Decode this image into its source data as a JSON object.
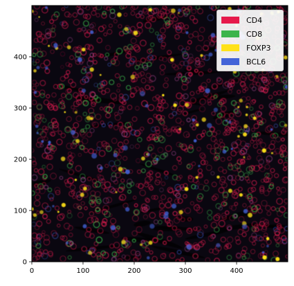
{
  "image": {
    "description_colors": {
      "background": "#0a0710",
      "membrane": "#e21d4f",
      "cd8": "#3cb44b",
      "foxp3": "#ffe119",
      "bcl6": "#4363d8"
    }
  },
  "axes": {
    "xlim": [
      0,
      500
    ],
    "ylim": [
      0,
      500
    ],
    "x_ticks": [
      "0",
      "100",
      "200",
      "300",
      "400"
    ],
    "y_ticks": [
      "0",
      "100",
      "200",
      "300",
      "400"
    ]
  },
  "legend": {
    "placement": "top-right",
    "entries": [
      {
        "label": "CD4",
        "color": "#e6194b"
      },
      {
        "label": "CD8",
        "color": "#3cb44b"
      },
      {
        "label": "FOXP3",
        "color": "#ffe119"
      },
      {
        "label": "BCL6",
        "color": "#4363d8"
      }
    ]
  }
}
